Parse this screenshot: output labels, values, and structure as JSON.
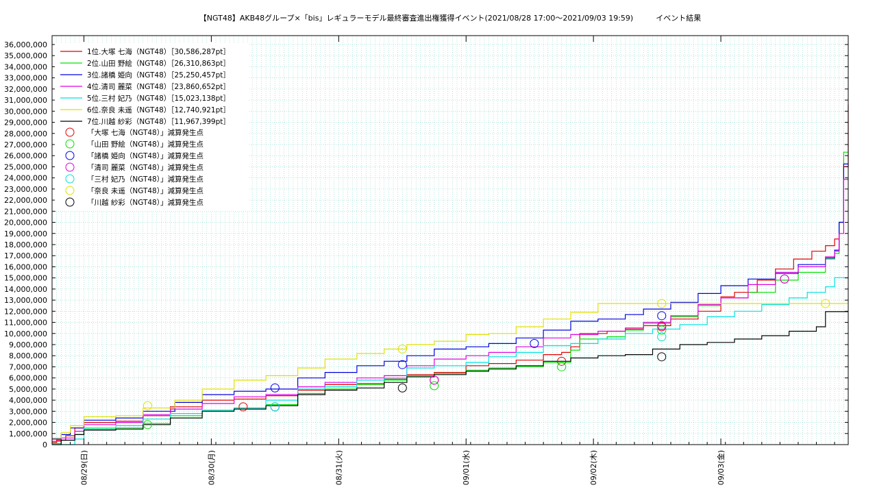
{
  "chart_data": {
    "type": "line",
    "title": "【NGT48】AKB48グループ×「bis」レギュラーモデル最終審査進出権獲得イベント(2021/08/28 17:00〜2021/09/03 19:59)　　　イベント結果",
    "xlabel": "",
    "ylabel": "",
    "x_unit": "hours since 2021/08/28 17:00",
    "xlim": [
      0,
      175
    ],
    "ylim": [
      0,
      36800000
    ],
    "y_ticks": [
      0,
      1000000,
      2000000,
      3000000,
      4000000,
      5000000,
      6000000,
      7000000,
      8000000,
      9000000,
      10000000,
      11000000,
      12000000,
      13000000,
      14000000,
      15000000,
      16000000,
      17000000,
      18000000,
      19000000,
      20000000,
      21000000,
      22000000,
      23000000,
      24000000,
      25000000,
      26000000,
      27000000,
      28000000,
      29000000,
      30000000,
      31000000,
      32000000,
      33000000,
      34000000,
      35000000,
      36000000
    ],
    "y_tick_labels": [
      "0",
      "1,000,000",
      "2,000,000",
      "3,000,000",
      "4,000,000",
      "5,000,000",
      "6,000,000",
      "7,000,000",
      "8,000,000",
      "9,000,000",
      "10,000,000",
      "11,000,000",
      "12,000,000",
      "13,000,000",
      "14,000,000",
      "15,000,000",
      "16,000,000",
      "17,000,000",
      "18,000,000",
      "19,000,000",
      "20,000,000",
      "21,000,000",
      "22,000,000",
      "23,000,000",
      "24,000,000",
      "25,000,000",
      "26,000,000",
      "27,000,000",
      "28,000,000",
      "29,000,000",
      "30,000,000",
      "31,000,000",
      "32,000,000",
      "33,000,000",
      "34,000,000",
      "35,000,000",
      "36,000,000"
    ],
    "x_ticks": [
      {
        "x": 7,
        "label": "08/29(日)"
      },
      {
        "x": 35,
        "label": "08/30(月)"
      },
      {
        "x": 63,
        "label": "08/31(火)"
      },
      {
        "x": 91,
        "label": "09/01(水)"
      },
      {
        "x": 119,
        "label": "09/02(木)"
      },
      {
        "x": 147,
        "label": "09/03(金)"
      }
    ],
    "grid": true,
    "legend_position": "top-left",
    "series": [
      {
        "name": "1位.大塚 七海（NGT48）［30,586,287pt］",
        "color": "#e00000",
        "points": [
          [
            0,
            200000
          ],
          [
            1,
            400000
          ],
          [
            3,
            800000
          ],
          [
            5,
            1500000
          ],
          [
            7,
            2000000
          ],
          [
            14,
            2100000
          ],
          [
            20,
            2600000
          ],
          [
            26,
            3400000
          ],
          [
            33,
            4000000
          ],
          [
            40,
            4100000
          ],
          [
            47,
            4400000
          ],
          [
            54,
            4900000
          ],
          [
            60,
            5400000
          ],
          [
            67,
            5500000
          ],
          [
            73,
            5900000
          ],
          [
            78,
            6300000
          ],
          [
            84,
            6500000
          ],
          [
            91,
            7100000
          ],
          [
            96,
            7300000
          ],
          [
            102,
            7600000
          ],
          [
            108,
            8100000
          ],
          [
            112,
            8300000
          ],
          [
            114,
            8800000
          ],
          [
            116,
            10000000
          ],
          [
            122,
            10200000
          ],
          [
            126,
            10400000
          ],
          [
            130,
            10700000
          ],
          [
            136,
            11300000
          ],
          [
            142,
            12000000
          ],
          [
            147,
            13300000
          ],
          [
            150,
            13700000
          ],
          [
            155,
            14800000
          ],
          [
            159,
            15800000
          ],
          [
            163,
            16700000
          ],
          [
            167,
            17400000
          ],
          [
            170,
            17900000
          ],
          [
            172,
            18500000
          ],
          [
            173,
            20000000
          ],
          [
            174,
            25000000
          ],
          [
            175,
            30586287
          ]
        ]
      },
      {
        "name": "2位.山田 野絵（NGT48）［26,310,863pt］",
        "color": "#00e000",
        "points": [
          [
            0,
            100000
          ],
          [
            2,
            400000
          ],
          [
            5,
            900000
          ],
          [
            7,
            1400000
          ],
          [
            14,
            1500000
          ],
          [
            20,
            1900000
          ],
          [
            26,
            2600000
          ],
          [
            33,
            3100000
          ],
          [
            40,
            3300000
          ],
          [
            47,
            3600000
          ],
          [
            54,
            4600000
          ],
          [
            60,
            5000000
          ],
          [
            67,
            5400000
          ],
          [
            73,
            5800000
          ],
          [
            78,
            6200000
          ],
          [
            84,
            6400000
          ],
          [
            91,
            6700000
          ],
          [
            96,
            6900000
          ],
          [
            102,
            7000000
          ],
          [
            108,
            7400000
          ],
          [
            114,
            8500000
          ],
          [
            116,
            9500000
          ],
          [
            122,
            9700000
          ],
          [
            126,
            10300000
          ],
          [
            130,
            10900000
          ],
          [
            136,
            11500000
          ],
          [
            142,
            12500000
          ],
          [
            147,
            13200000
          ],
          [
            153,
            13700000
          ],
          [
            159,
            14800000
          ],
          [
            164,
            15500000
          ],
          [
            170,
            16700000
          ],
          [
            172,
            17200000
          ],
          [
            173,
            20000000
          ],
          [
            174,
            26310863
          ],
          [
            175,
            26310863
          ]
        ]
      },
      {
        "name": "3位.諸橋 姫向（NGT48）［25,250,457pt］",
        "color": "#0000e0",
        "points": [
          [
            0,
            500000
          ],
          [
            2,
            900000
          ],
          [
            4,
            1500000
          ],
          [
            7,
            2200000
          ],
          [
            14,
            2400000
          ],
          [
            20,
            3000000
          ],
          [
            27,
            3800000
          ],
          [
            33,
            4500000
          ],
          [
            40,
            4800000
          ],
          [
            47,
            5000000
          ],
          [
            54,
            6000000
          ],
          [
            60,
            6500000
          ],
          [
            67,
            7100000
          ],
          [
            73,
            7500000
          ],
          [
            78,
            8000000
          ],
          [
            84,
            8600000
          ],
          [
            91,
            8800000
          ],
          [
            96,
            9100000
          ],
          [
            102,
            9600000
          ],
          [
            108,
            10300000
          ],
          [
            114,
            11100000
          ],
          [
            120,
            11300000
          ],
          [
            126,
            11700000
          ],
          [
            130,
            12200000
          ],
          [
            136,
            12800000
          ],
          [
            142,
            13600000
          ],
          [
            147,
            14300000
          ],
          [
            153,
            14900000
          ],
          [
            159,
            15400000
          ],
          [
            164,
            16200000
          ],
          [
            170,
            16800000
          ],
          [
            172,
            17500000
          ],
          [
            173,
            20000000
          ],
          [
            174,
            25250457
          ],
          [
            175,
            25250457
          ]
        ]
      },
      {
        "name": "4位.清司 麗菜（NGT48）［23,860,652pt］",
        "color": "#e000e0",
        "points": [
          [
            0,
            300000
          ],
          [
            2,
            600000
          ],
          [
            5,
            1200000
          ],
          [
            7,
            1800000
          ],
          [
            14,
            2000000
          ],
          [
            20,
            2700000
          ],
          [
            26,
            3200000
          ],
          [
            33,
            3700000
          ],
          [
            40,
            4300000
          ],
          [
            47,
            4500000
          ],
          [
            54,
            5200000
          ],
          [
            60,
            5600000
          ],
          [
            67,
            6000000
          ],
          [
            73,
            6200000
          ],
          [
            78,
            7100000
          ],
          [
            84,
            7700000
          ],
          [
            91,
            8000000
          ],
          [
            96,
            8300000
          ],
          [
            102,
            8800000
          ],
          [
            108,
            9600000
          ],
          [
            114,
            9900000
          ],
          [
            120,
            10200000
          ],
          [
            126,
            10500000
          ],
          [
            130,
            11000000
          ],
          [
            136,
            11600000
          ],
          [
            142,
            12600000
          ],
          [
            147,
            13200000
          ],
          [
            153,
            14400000
          ],
          [
            159,
            15500000
          ],
          [
            164,
            16000000
          ],
          [
            170,
            16900000
          ],
          [
            172,
            17400000
          ],
          [
            173,
            19000000
          ],
          [
            174,
            23860652
          ],
          [
            175,
            23860652
          ]
        ]
      },
      {
        "name": "5位.三村 妃乃（NGT48）［15,023,138pt］",
        "color": "#00e0e0",
        "points": [
          [
            0,
            0
          ],
          [
            3,
            0
          ],
          [
            5,
            500000
          ],
          [
            7,
            1500000
          ],
          [
            14,
            1700000
          ],
          [
            20,
            2300000
          ],
          [
            26,
            2800000
          ],
          [
            33,
            3100000
          ],
          [
            40,
            3300000
          ],
          [
            47,
            4000000
          ],
          [
            54,
            5000000
          ],
          [
            60,
            5200000
          ],
          [
            67,
            5800000
          ],
          [
            73,
            6000000
          ],
          [
            78,
            6900000
          ],
          [
            84,
            7100000
          ],
          [
            91,
            7400000
          ],
          [
            96,
            7900000
          ],
          [
            102,
            8300000
          ],
          [
            108,
            8900000
          ],
          [
            114,
            9100000
          ],
          [
            120,
            9500000
          ],
          [
            126,
            10000000
          ],
          [
            132,
            10400000
          ],
          [
            138,
            10800000
          ],
          [
            144,
            11500000
          ],
          [
            150,
            12000000
          ],
          [
            156,
            12600000
          ],
          [
            162,
            13200000
          ],
          [
            166,
            13700000
          ],
          [
            170,
            14200000
          ],
          [
            172,
            15023138
          ],
          [
            175,
            15023138
          ]
        ]
      },
      {
        "name": "6位.奈良 未遥（NGT48）［12,740,921pt］",
        "color": "#e0e000",
        "points": [
          [
            0,
            600000
          ],
          [
            2,
            1100000
          ],
          [
            4,
            1700000
          ],
          [
            7,
            2500000
          ],
          [
            14,
            2600000
          ],
          [
            20,
            3300000
          ],
          [
            27,
            4000000
          ],
          [
            33,
            5000000
          ],
          [
            40,
            5800000
          ],
          [
            47,
            6200000
          ],
          [
            54,
            6900000
          ],
          [
            60,
            7700000
          ],
          [
            67,
            8200000
          ],
          [
            73,
            8600000
          ],
          [
            78,
            9000000
          ],
          [
            84,
            9300000
          ],
          [
            91,
            9900000
          ],
          [
            96,
            10000000
          ],
          [
            102,
            10600000
          ],
          [
            108,
            11300000
          ],
          [
            114,
            11900000
          ],
          [
            120,
            12700000
          ],
          [
            126,
            12700000
          ],
          [
            175,
            12700000
          ]
        ]
      },
      {
        "name": "7位.川越 紗彩（NGT48）［11,967,399pt］",
        "color": "#000000",
        "points": [
          [
            0,
            0
          ],
          [
            2,
            400000
          ],
          [
            5,
            900000
          ],
          [
            7,
            1300000
          ],
          [
            14,
            1400000
          ],
          [
            20,
            1800000
          ],
          [
            26,
            2400000
          ],
          [
            33,
            3000000
          ],
          [
            40,
            3200000
          ],
          [
            47,
            3500000
          ],
          [
            54,
            4500000
          ],
          [
            60,
            4900000
          ],
          [
            67,
            5100000
          ],
          [
            73,
            5600000
          ],
          [
            78,
            6100000
          ],
          [
            84,
            6300000
          ],
          [
            91,
            6600000
          ],
          [
            96,
            6800000
          ],
          [
            102,
            7100000
          ],
          [
            108,
            7500000
          ],
          [
            114,
            7800000
          ],
          [
            120,
            8000000
          ],
          [
            126,
            8100000
          ],
          [
            132,
            8600000
          ],
          [
            138,
            9000000
          ],
          [
            144,
            9200000
          ],
          [
            150,
            9500000
          ],
          [
            156,
            9800000
          ],
          [
            162,
            10200000
          ],
          [
            168,
            10600000
          ],
          [
            170,
            11967399
          ],
          [
            175,
            11967399
          ]
        ]
      }
    ],
    "markers": [
      {
        "name": "「大塚 七海（NGT48）」減算発生点",
        "color": "#e00000",
        "points": [
          [
            42,
            3400000
          ],
          [
            84,
            5800000
          ],
          [
            112,
            7500000
          ],
          [
            134,
            10600000
          ],
          [
            161,
            14900000
          ]
        ]
      },
      {
        "name": "「山田 野絵（NGT48）」減算発生点",
        "color": "#00e000",
        "points": [
          [
            21,
            1800000
          ],
          [
            49,
            3400000
          ],
          [
            84,
            5300000
          ],
          [
            112,
            7000000
          ],
          [
            134,
            10300000
          ]
        ]
      },
      {
        "name": "「諸橋 姫向（NGT48）」減算発生点",
        "color": "#0000e0",
        "points": [
          [
            49,
            5100000
          ],
          [
            77,
            7200000
          ],
          [
            106,
            9100000
          ],
          [
            134,
            11600000
          ]
        ]
      },
      {
        "name": "「清司 麗菜（NGT48）」減算発生点",
        "color": "#e000e0",
        "points": [
          [
            49,
            3400000
          ],
          [
            84,
            5800000
          ],
          [
            134,
            10700000
          ],
          [
            161,
            14900000
          ]
        ]
      },
      {
        "name": "「三村 妃乃（NGT48）」減算発生点",
        "color": "#00e0e0",
        "points": [
          [
            49,
            3400000
          ],
          [
            134,
            9700000
          ]
        ]
      },
      {
        "name": "「奈良 未遥（NGT48）」減算発生点",
        "color": "#e0e000",
        "points": [
          [
            21,
            3500000
          ],
          [
            77,
            8600000
          ],
          [
            134,
            12700000
          ],
          [
            170,
            12700000
          ]
        ]
      },
      {
        "name": "「川越 紗彩（NGT48）」減算発生点",
        "color": "#000000",
        "points": [
          [
            77,
            5100000
          ],
          [
            134,
            7900000
          ]
        ]
      }
    ]
  }
}
